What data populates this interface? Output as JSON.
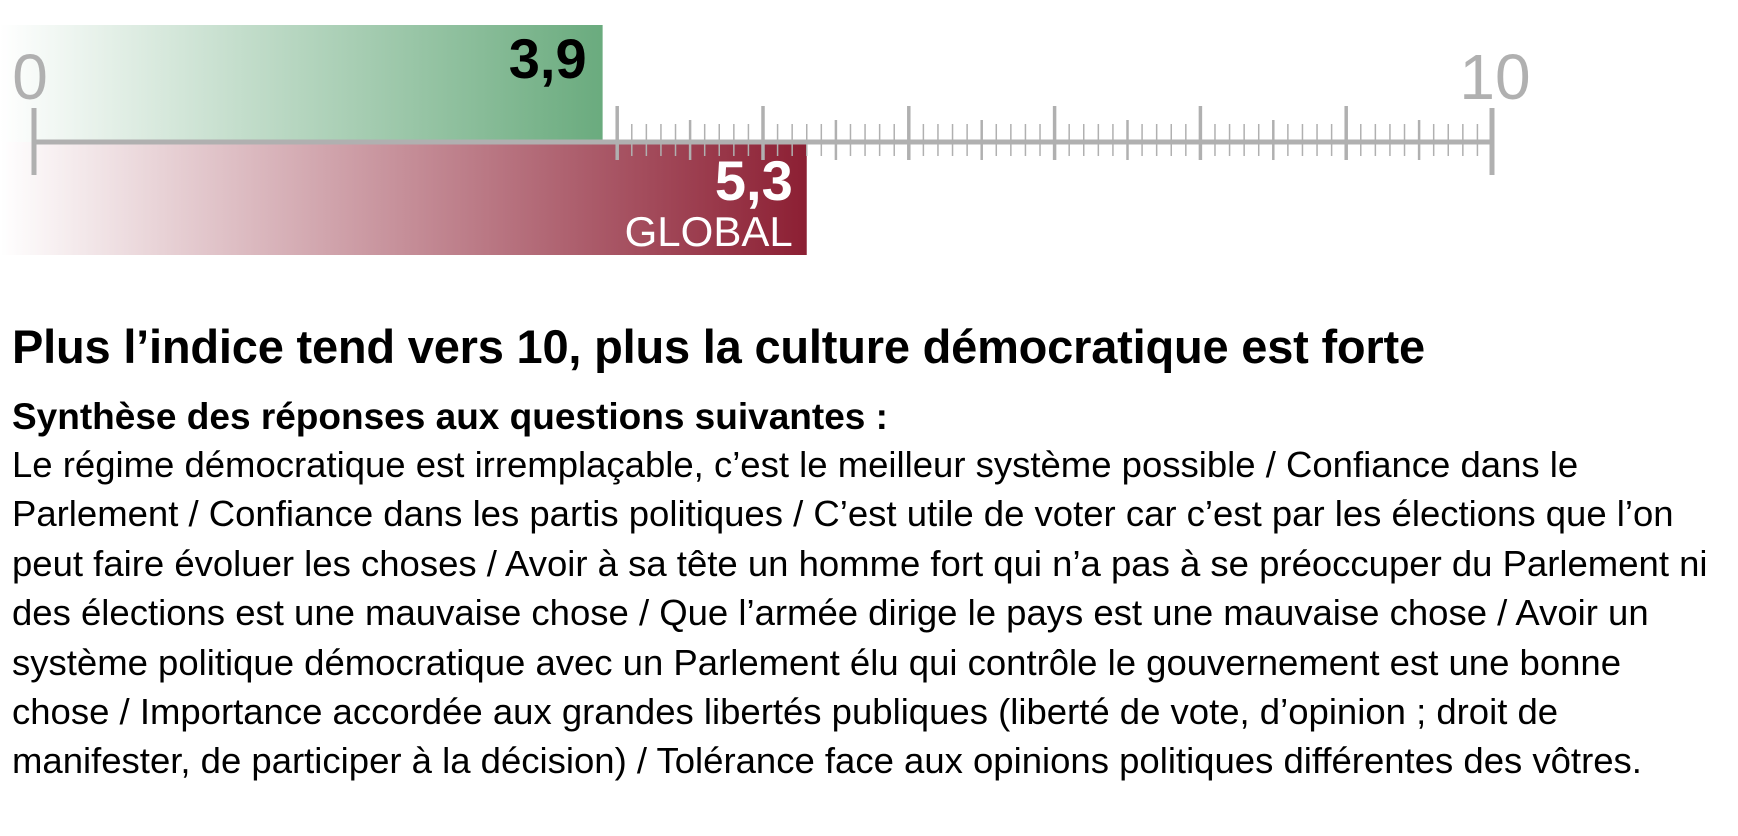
{
  "chart_data": {
    "type": "bar",
    "orientation": "horizontal",
    "xlim": [
      0,
      10
    ],
    "tick_labels": [
      "0",
      "10"
    ],
    "series": [
      {
        "value": 3.9,
        "label": "3,9",
        "color": "#6aab7e",
        "position": "above-axis"
      },
      {
        "name": "GLOBAL",
        "value": 5.3,
        "label": "5,3",
        "color": "#8c1f33",
        "position": "below-axis"
      }
    ],
    "axis_color": "#b0b0b0",
    "grid": false
  },
  "text": {
    "headline": "Plus l’indice tend vers 10, plus la culture démocratique est forte",
    "subhead": "Synthèse des réponses aux questions suivantes :",
    "body": "Le régime démocratique est irremplaçable, c’est le meilleur système possible / Confiance dans le Parlement / Confiance dans les partis politiques / C’est utile de voter car c’est par les élections que l’on peut faire évoluer les choses / Avoir à sa tête un homme fort qui n’a pas à se préoccuper du Parlement ni des élections est une mauvaise chose / Que l’armée dirige le pays est une mauvaise chose / Avoir un système politique démocratique avec un Parlement élu qui contrôle le gouvernement est une bonne chose / Importance accordée aux grandes libertés publiques (liberté de vote, d’opinion ; droit de manifester, de participer à la décision) / Tolérance face aux opinions politiques différentes des vôtres."
  }
}
